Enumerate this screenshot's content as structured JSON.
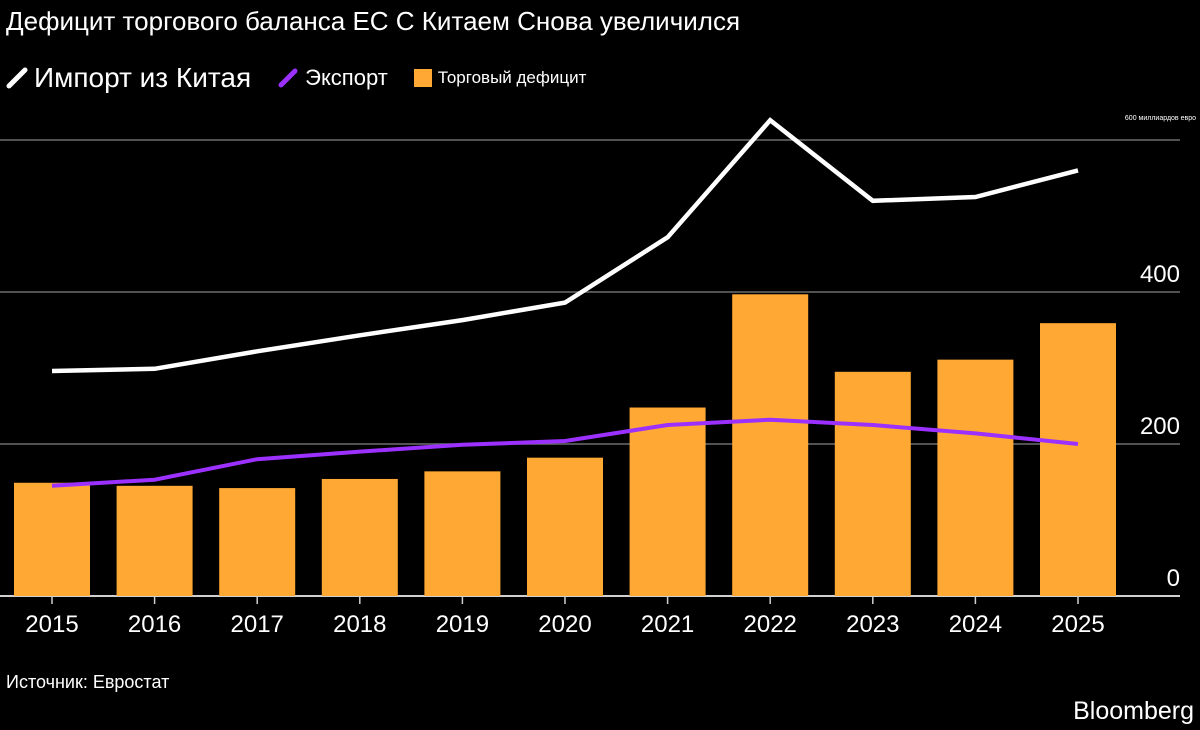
{
  "title": "Дефицит торгового баланса ЕС С Китаем Снова увеличился",
  "source": "Источник: Евростат",
  "brand": "Bloomberg",
  "colors": {
    "background": "#000000",
    "import": "#ffffff",
    "export": "#9b30ff",
    "deficit": "#ffa833",
    "grid": "#6e6e6e"
  },
  "chart_data": {
    "type": "bar",
    "title": "Дефицит торгового баланса ЕС С Китаем Снова увеличился",
    "unit_label": "600 миллиардов евро",
    "categories": [
      "2015",
      "2016",
      "2017",
      "2018",
      "2019",
      "2020",
      "2021",
      "2022",
      "2023",
      "2024",
      "2025"
    ],
    "series": [
      {
        "name": "Импорт из Китая",
        "type": "line",
        "color": "#ffffff",
        "values": [
          296,
          299,
          322,
          343,
          363,
          386,
          472,
          626,
          520,
          525,
          560
        ]
      },
      {
        "name": "Экспорт",
        "type": "line",
        "color": "#9b30ff",
        "values": [
          145,
          153,
          180,
          190,
          199,
          204,
          225,
          232,
          225,
          214,
          200
        ]
      },
      {
        "name": "Торговый дефицит",
        "type": "bar",
        "color": "#ffa833",
        "values": [
          149,
          145,
          142,
          154,
          164,
          182,
          248,
          397,
          295,
          311,
          359
        ]
      }
    ],
    "yticks": [
      0,
      200,
      400,
      600
    ],
    "ytick_labels": [
      "0",
      "200",
      "400",
      ""
    ],
    "ylim": [
      0,
      630
    ],
    "y_axis_side": "right",
    "grid": true,
    "legend_position": "top-left"
  }
}
